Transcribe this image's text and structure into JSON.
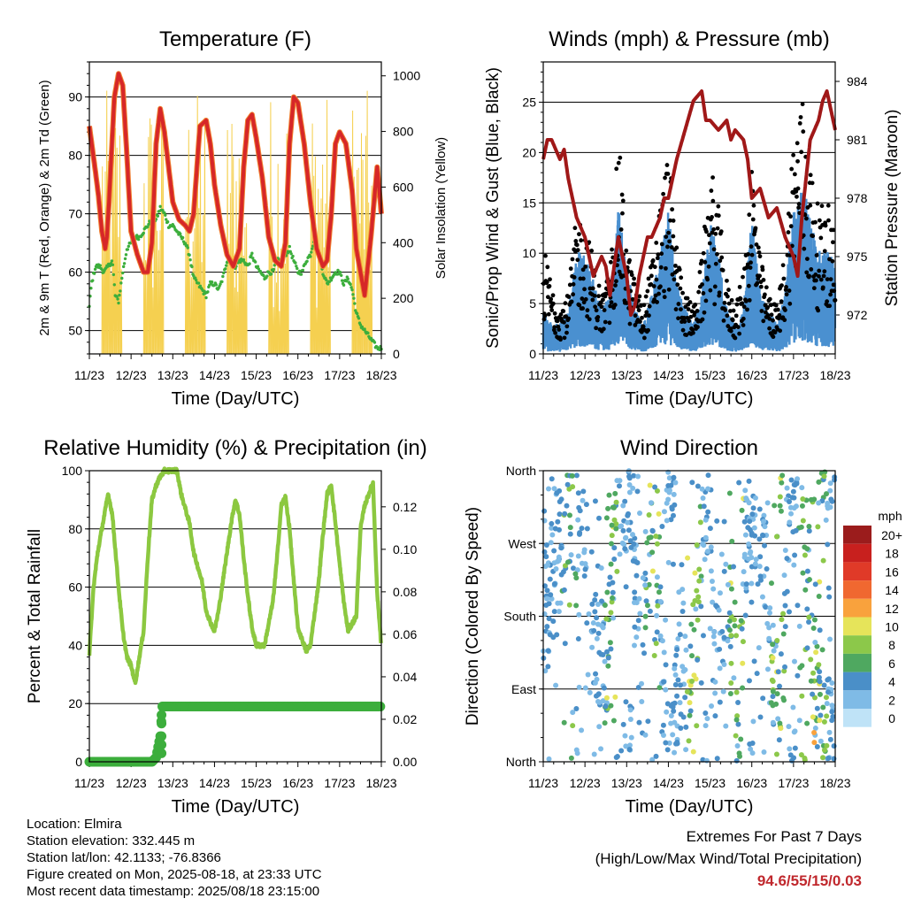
{
  "chart_data": [
    {
      "type": "line",
      "title": "Temperature (F)",
      "xlabel": "Time (Day/UTC)",
      "ylabel": "2m & 9m T (Red, Orange) & 2m Td (Green)",
      "y2label": "Solar Insolation (Yellow)",
      "x_ticks": [
        "11/23",
        "12/23",
        "13/23",
        "14/23",
        "15/23",
        "16/23",
        "17/23",
        "18/23"
      ],
      "ylim": [
        46,
        96
      ],
      "y_ticks": [
        "50",
        "60",
        "70",
        "80",
        "90"
      ],
      "y2lim": [
        0,
        1050
      ],
      "y2_ticks": [
        "0",
        "200",
        "400",
        "600",
        "800",
        "1000"
      ],
      "colors": {
        "t2m": "#d62728",
        "t9m": "#f08030",
        "td": "#3cae3c",
        "solar": "#f5d050"
      },
      "series": [
        {
          "name": "2m T",
          "x": [
            0,
            0.15,
            0.22,
            0.3,
            0.38,
            0.42,
            0.47,
            0.6,
            0.7,
            0.8,
            0.9,
            1.0,
            1.15,
            1.3,
            1.4,
            1.5,
            1.6,
            1.7,
            1.8,
            1.9,
            2.0,
            2.15,
            2.3,
            2.4,
            2.5,
            2.65,
            2.8,
            2.9,
            3.0,
            3.15,
            3.3,
            3.45,
            3.6,
            3.7,
            3.8,
            3.9,
            4.0,
            4.15,
            4.3,
            4.45,
            4.6,
            4.7,
            4.8,
            4.9,
            5.0,
            5.15,
            5.3,
            5.45,
            5.6,
            5.7,
            5.8,
            5.9,
            6.0,
            6.15,
            6.3,
            6.4,
            6.5,
            6.6,
            6.75,
            6.9,
            7.0
          ],
          "values": [
            85,
            77,
            73,
            67,
            64,
            66,
            72,
            90,
            94,
            92,
            80,
            67,
            63,
            60,
            60,
            65,
            82,
            88,
            84,
            78,
            72,
            69,
            68,
            67,
            70,
            85,
            86,
            82,
            75,
            68,
            63,
            61,
            64,
            78,
            86,
            87,
            83,
            76,
            66,
            62,
            61,
            65,
            82,
            90,
            89,
            82,
            72,
            64,
            61,
            62,
            70,
            82,
            84,
            82,
            74,
            64,
            60,
            56,
            66,
            78,
            70
          ]
        },
        {
          "name": "2m Td",
          "x": [
            0,
            0.05,
            0.15,
            0.25,
            0.35,
            0.45,
            0.55,
            0.62,
            0.7,
            0.8,
            0.9,
            1.0,
            1.1,
            1.2,
            1.3,
            1.4,
            1.5,
            1.6,
            1.7,
            1.8,
            1.9,
            2.0,
            2.1,
            2.2,
            2.3,
            2.4,
            2.5,
            2.6,
            2.7,
            2.8,
            2.9,
            3.0,
            3.1,
            3.2,
            3.3,
            3.4,
            3.5,
            3.6,
            3.7,
            3.8,
            3.9,
            4.0,
            4.1,
            4.2,
            4.3,
            4.4,
            4.5,
            4.6,
            4.7,
            4.8,
            4.9,
            5.0,
            5.1,
            5.2,
            5.3,
            5.4,
            5.5,
            5.6,
            5.7,
            5.8,
            5.9,
            6.0,
            6.1,
            6.2,
            6.3,
            6.4,
            6.5,
            6.6,
            6.7,
            6.8,
            6.9,
            7.0
          ],
          "values": [
            54,
            58,
            61,
            61,
            60,
            61,
            62,
            56,
            55,
            60,
            64,
            65,
            66,
            66,
            67,
            68,
            69,
            69,
            71,
            70,
            68,
            68,
            67,
            66,
            65,
            63,
            59,
            58,
            57,
            56,
            58,
            58,
            57,
            59,
            62,
            62,
            61,
            62,
            62,
            61,
            63,
            61,
            60,
            59,
            60,
            60,
            62,
            62,
            63,
            64,
            62,
            60,
            60,
            62,
            63,
            66,
            63,
            60,
            58,
            59,
            60,
            60,
            58,
            59,
            57,
            53,
            51,
            50,
            49,
            48,
            47,
            47
          ]
        }
      ]
    },
    {
      "type": "scatter",
      "title": "Winds (mph) & Pressure (mb)",
      "xlabel": "Time (Day/UTC)",
      "ylabel": "Sonic/Prop Wind & Gust (Blue, Black)",
      "y2label": "Station Pressure (Maroon)",
      "x_ticks": [
        "11/23",
        "12/23",
        "13/23",
        "14/23",
        "15/23",
        "16/23",
        "17/23",
        "18/23"
      ],
      "ylim": [
        0,
        29
      ],
      "y_ticks": [
        "0",
        "5",
        "10",
        "15",
        "20",
        "25"
      ],
      "y2lim": [
        970,
        985
      ],
      "y2_ticks": [
        "972",
        "975",
        "978",
        "981",
        "984"
      ],
      "colors": {
        "wind": "#4a90d0",
        "gust": "#000000",
        "pressure": "#a01818"
      },
      "series": [
        {
          "name": "Station Pressure",
          "x": [
            0,
            0.1,
            0.2,
            0.3,
            0.4,
            0.5,
            0.6,
            0.8,
            1.0,
            1.2,
            1.4,
            1.5,
            1.6,
            1.8,
            1.9,
            2.0,
            2.1,
            2.2,
            2.3,
            2.5,
            2.6,
            2.7,
            2.8,
            2.9,
            3.0,
            3.2,
            3.4,
            3.6,
            3.8,
            3.9,
            4.0,
            4.2,
            4.4,
            4.5,
            4.6,
            4.8,
            4.9,
            5.0,
            5.2,
            5.4,
            5.6,
            5.8,
            6.0,
            6.1,
            6.2,
            6.4,
            6.5,
            6.6,
            6.7,
            6.8,
            6.9,
            7.0
          ],
          "values": [
            980,
            981,
            981,
            980.5,
            980,
            980.5,
            979,
            977,
            976,
            974,
            975,
            974.5,
            973,
            976,
            975,
            974,
            972,
            972.5,
            974,
            976,
            976,
            976.5,
            977,
            978,
            978,
            980,
            981.5,
            983,
            983.5,
            982,
            982,
            981.5,
            982,
            981,
            981.5,
            981,
            980,
            978,
            978.5,
            977,
            977.5,
            976,
            975,
            974,
            977,
            981,
            981.5,
            982,
            983,
            983.5,
            982.5,
            981.5
          ]
        },
        {
          "name": "Gust",
          "x": [
            0,
            0.2,
            0.4,
            0.6,
            0.8,
            1.0,
            1.2,
            1.4,
            1.6,
            1.8,
            2.0,
            2.2,
            2.4,
            2.6,
            2.8,
            3.0,
            3.2,
            3.4,
            3.6,
            3.8,
            4.0,
            4.2,
            4.4,
            4.6,
            4.8,
            5.0,
            5.2,
            5.4,
            5.6,
            5.8,
            6.0,
            6.2,
            6.4,
            6.6,
            6.8,
            7.0
          ],
          "values": [
            9,
            6,
            4,
            5,
            12,
            11,
            8,
            5,
            7,
            18,
            9,
            6,
            4,
            8,
            13,
            17,
            9,
            5,
            4,
            8,
            16,
            12,
            6,
            4,
            7,
            17,
            8,
            5,
            4,
            9,
            19,
            22,
            16,
            12,
            13,
            11
          ]
        },
        {
          "name": "Sonic/Prop Wind",
          "x": [
            0,
            0.2,
            0.4,
            0.6,
            0.8,
            1.0,
            1.2,
            1.4,
            1.6,
            1.8,
            2.0,
            2.2,
            2.4,
            2.6,
            2.8,
            3.0,
            3.2,
            3.4,
            3.6,
            3.8,
            4.0,
            4.2,
            4.4,
            4.6,
            4.8,
            5.0,
            5.2,
            5.4,
            5.6,
            5.8,
            6.0,
            6.2,
            6.4,
            6.6,
            6.8,
            7.0
          ],
          "values": [
            3,
            2,
            2,
            3,
            7,
            7,
            5,
            3,
            4,
            10,
            6,
            3,
            2,
            4,
            7,
            10,
            5,
            3,
            2,
            4,
            9,
            7,
            3,
            2,
            3,
            9,
            4,
            3,
            2,
            4,
            10,
            12,
            9,
            7,
            7,
            6
          ]
        }
      ]
    },
    {
      "type": "line",
      "title": "Relative Humidity (%) & Precipitation (in)",
      "xlabel": "Time (Day/UTC)",
      "ylabel": "Percent & Total Rainfall",
      "x_ticks": [
        "11/23",
        "12/23",
        "13/23",
        "14/23",
        "15/23",
        "16/23",
        "17/23",
        "18/23"
      ],
      "ylim": [
        0,
        100
      ],
      "y_ticks": [
        "0",
        "20",
        "40",
        "60",
        "80",
        "100"
      ],
      "y2lim": [
        0,
        0.137
      ],
      "y2_ticks": [
        "0.00",
        "0.02",
        "0.04",
        "0.06",
        "0.08",
        "0.10",
        "0.12"
      ],
      "colors": {
        "rh": "#8cc840",
        "precip": "#3cae3c"
      },
      "series": [
        {
          "name": "RH",
          "x": [
            0,
            0.1,
            0.2,
            0.3,
            0.45,
            0.55,
            0.7,
            0.8,
            0.9,
            1.0,
            1.1,
            1.3,
            1.4,
            1.5,
            1.6,
            1.7,
            1.8,
            1.95,
            2.1,
            2.2,
            2.4,
            2.5,
            2.7,
            2.8,
            2.9,
            3.0,
            3.1,
            3.2,
            3.4,
            3.5,
            3.6,
            3.7,
            3.8,
            3.9,
            4.0,
            4.2,
            4.4,
            4.5,
            4.6,
            4.7,
            4.8,
            4.9,
            5.0,
            5.2,
            5.3,
            5.5,
            5.6,
            5.7,
            5.8,
            5.9,
            6.0,
            6.1,
            6.2,
            6.4,
            6.5,
            6.6,
            6.8,
            6.9,
            7.0
          ],
          "values": [
            37,
            60,
            72,
            80,
            92,
            85,
            60,
            45,
            36,
            33,
            27,
            45,
            70,
            90,
            95,
            98,
            100,
            100,
            100,
            92,
            82,
            72,
            62,
            52,
            48,
            45,
            52,
            62,
            82,
            90,
            85,
            70,
            57,
            46,
            40,
            40,
            55,
            70,
            88,
            91,
            80,
            62,
            46,
            38,
            40,
            62,
            78,
            92,
            95,
            82,
            68,
            55,
            45,
            50,
            80,
            88,
            96,
            58,
            40
          ]
        },
        {
          "name": "Total Rainfall",
          "x": [
            0,
            1.5,
            1.6,
            1.7,
            1.75,
            2.0,
            3.0,
            4.0,
            5.0,
            6.0,
            7.0
          ],
          "values": [
            0,
            0,
            0.002,
            0.012,
            0.026,
            0.026,
            0.026,
            0.026,
            0.026,
            0.026,
            0.026
          ]
        }
      ]
    },
    {
      "type": "scatter",
      "title": "Wind Direction",
      "xlabel": "Time (Day/UTC)",
      "ylabel": "Direction (Colored By Speed)",
      "x_ticks": [
        "11/23",
        "12/23",
        "13/23",
        "14/23",
        "15/23",
        "16/23",
        "17/23",
        "18/23"
      ],
      "y_ticks": [
        "North",
        "East",
        "South",
        "West",
        "North"
      ],
      "ylim": [
        0,
        360
      ],
      "legend": {
        "title": "mph",
        "position": "right",
        "labels": [
          "20+",
          "18",
          "16",
          "14",
          "12",
          "10",
          "8",
          "6",
          "4",
          "2",
          "0"
        ],
        "colors": [
          "#9b1c1c",
          "#c8201e",
          "#e03a28",
          "#f06830",
          "#f9a23d",
          "#e6e45a",
          "#8cc84a",
          "#4fa860",
          "#4a8fc8",
          "#7fbbe6",
          "#bfe3f7"
        ]
      },
      "series": [
        {
          "name": "Direction",
          "x": [
            0.1,
            0.3,
            0.5,
            0.7,
            0.9,
            1.1,
            1.3,
            1.5,
            1.7,
            1.9,
            2.1,
            2.3,
            2.5,
            2.7,
            2.9,
            3.1,
            3.3,
            3.5,
            3.7,
            3.9,
            4.1,
            4.3,
            4.5,
            4.7,
            4.9,
            5.1,
            5.3,
            5.5,
            5.7,
            5.9,
            6.1,
            6.3,
            6.5,
            6.7,
            6.9
          ],
          "values": [
            190,
            250,
            270,
            300,
            320,
            200,
            150,
            120,
            270,
            330,
            350,
            100,
            240,
            320,
            20,
            10,
            130,
            90,
            200,
            350,
            120,
            200,
            150,
            50,
            330,
            290,
            250,
            130,
            20,
            350,
            355,
            280,
            100,
            30,
            20
          ]
        }
      ]
    }
  ],
  "info": {
    "location": "Location: Elmira",
    "elevation": "Station elevation: 332.445 m",
    "latlon": "Station lat/lon: 42.1133; -76.8366",
    "created": "Figure created on Mon, 2025-08-18, at 23:33 UTC",
    "recent": "Most recent data timestamp: 2025/08/18 23:15:00"
  },
  "extremes": {
    "title": "Extremes For Past 7 Days",
    "subtitle": "(High/Low/Max Wind/Total Precipitation)",
    "values": "94.6/55/15/0.03"
  }
}
